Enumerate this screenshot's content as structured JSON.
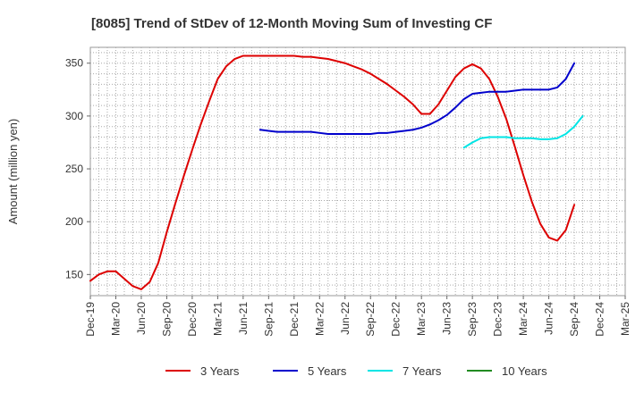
{
  "chart_data": {
    "type": "line",
    "title": "[8085]  Trend of StDev of 12-Month Moving Sum of Investing CF",
    "xlabel": "",
    "ylabel": "Amount (million yen)",
    "ylim": [
      130,
      365
    ],
    "yticks": [
      150,
      200,
      250,
      300,
      350
    ],
    "grid": true,
    "legend_position": "bottom",
    "x_tick_labels": [
      "Dec-19",
      "Mar-20",
      "Jun-20",
      "Sep-20",
      "Dec-20",
      "Mar-21",
      "Jun-21",
      "Sep-21",
      "Dec-21",
      "Mar-22",
      "Jun-22",
      "Sep-22",
      "Dec-22",
      "Mar-23",
      "Jun-23",
      "Sep-23",
      "Dec-23",
      "Mar-24",
      "Jun-24",
      "Sep-24",
      "Dec-24",
      "Mar-25"
    ],
    "x_months": [
      "2019-12",
      "2020-01",
      "2020-02",
      "2020-03",
      "2020-04",
      "2020-05",
      "2020-06",
      "2020-07",
      "2020-08",
      "2020-09",
      "2020-10",
      "2020-11",
      "2020-12",
      "2021-01",
      "2021-02",
      "2021-03",
      "2021-04",
      "2021-05",
      "2021-06",
      "2021-07",
      "2021-08",
      "2021-09",
      "2021-10",
      "2021-11",
      "2021-12",
      "2022-01",
      "2022-02",
      "2022-03",
      "2022-04",
      "2022-05",
      "2022-06",
      "2022-07",
      "2022-08",
      "2022-09",
      "2022-10",
      "2022-11",
      "2022-12",
      "2023-01",
      "2023-02",
      "2023-03",
      "2023-04",
      "2023-05",
      "2023-06",
      "2023-07",
      "2023-08",
      "2023-09",
      "2023-10",
      "2023-11",
      "2023-12",
      "2024-01",
      "2024-02",
      "2024-03",
      "2024-04",
      "2024-05",
      "2024-06",
      "2024-07",
      "2024-08",
      "2024-09",
      "2024-10",
      "2024-11",
      "2024-12",
      "2025-01",
      "2025-02",
      "2025-03"
    ],
    "series": [
      {
        "name": "3 Years",
        "color": "#dd0000",
        "values": [
          144,
          150,
          153,
          153,
          146,
          139,
          136,
          143,
          161,
          190,
          217,
          243,
          268,
          292,
          314,
          335,
          347,
          354,
          357,
          357,
          357,
          357,
          357,
          357,
          357,
          356,
          356,
          355,
          354,
          352,
          350,
          347,
          344,
          340,
          335,
          330,
          324,
          318,
          311,
          302,
          302,
          311,
          324,
          337,
          345,
          349,
          345,
          335,
          318,
          297,
          271,
          244,
          219,
          198,
          185,
          182,
          192,
          216,
          null,
          null,
          null,
          null,
          null,
          null
        ]
      },
      {
        "name": "5 Years",
        "color": "#0000cc",
        "values": [
          null,
          null,
          null,
          null,
          null,
          null,
          null,
          null,
          null,
          null,
          null,
          null,
          null,
          null,
          null,
          null,
          null,
          null,
          null,
          null,
          287,
          286,
          285,
          285,
          285,
          285,
          285,
          284,
          283,
          283,
          283,
          283,
          283,
          283,
          284,
          284,
          285,
          286,
          287,
          289,
          292,
          296,
          301,
          308,
          316,
          321,
          322,
          323,
          323,
          323,
          324,
          325,
          325,
          325,
          325,
          327,
          335,
          350,
          null,
          null,
          null,
          null,
          null,
          null
        ]
      },
      {
        "name": "7 Years",
        "color": "#00e5e5",
        "values": [
          null,
          null,
          null,
          null,
          null,
          null,
          null,
          null,
          null,
          null,
          null,
          null,
          null,
          null,
          null,
          null,
          null,
          null,
          null,
          null,
          null,
          null,
          null,
          null,
          null,
          null,
          null,
          null,
          null,
          null,
          null,
          null,
          null,
          null,
          null,
          null,
          null,
          null,
          null,
          null,
          null,
          null,
          null,
          null,
          270,
          275,
          279,
          280,
          280,
          280,
          279,
          279,
          279,
          278,
          278,
          279,
          283,
          290,
          300,
          null,
          null,
          null,
          null,
          null
        ]
      },
      {
        "name": "10 Years",
        "color": "#228b22",
        "values": []
      }
    ]
  }
}
